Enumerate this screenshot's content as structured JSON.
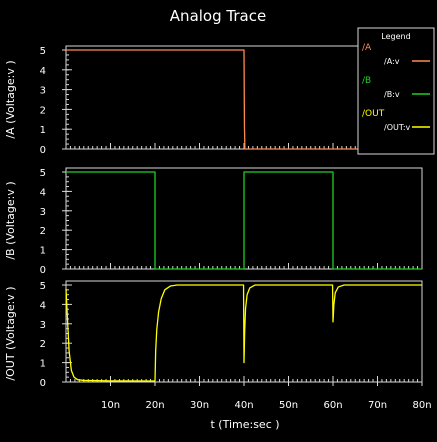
{
  "window": {
    "title": "Analog Trace"
  },
  "colors": {
    "background": "#000000",
    "axis": "#d8d8d8",
    "text": "#ffffff",
    "trace_a": "#ff8a50",
    "trace_b": "#20d020",
    "trace_out": "#ffff00"
  },
  "legend": {
    "title": "Legend",
    "entries": [
      {
        "group": "/A",
        "signal": "/A:v",
        "color_key": "trace_a"
      },
      {
        "group": "/B",
        "signal": "/B:v",
        "color_key": "trace_b"
      },
      {
        "group": "/OUT",
        "signal": "/OUT:v",
        "color_key": "trace_out"
      }
    ]
  },
  "chart_data": {
    "type": "line",
    "title": "Analog Trace",
    "xlabel": "t (Time:sec )",
    "xlim": [
      0,
      80
    ],
    "x_unit": "ns",
    "x_tick_labels": [
      "10n",
      "20n",
      "30n",
      "40n",
      "50n",
      "60n",
      "70n",
      "80n"
    ],
    "x_tick_values": [
      10,
      20,
      30,
      40,
      50,
      60,
      70,
      80
    ],
    "legend_placement": "top-right",
    "grid": false,
    "panels": [
      {
        "ylabel": "/A (Voltage:v )",
        "ylim": [
          0,
          5
        ],
        "y_tick_labels": [
          "0",
          "1",
          "2",
          "3",
          "4",
          "5"
        ],
        "series": [
          {
            "name": "/A:v",
            "color_key": "trace_a",
            "points": [
              [
                0,
                5
              ],
              [
                40,
                5
              ],
              [
                40.1,
                1.2
              ],
              [
                40.2,
                0
              ],
              [
                80,
                0
              ]
            ]
          }
        ]
      },
      {
        "ylabel": "/B (Voltage:v )",
        "ylim": [
          0,
          5
        ],
        "y_tick_labels": [
          "0",
          "1",
          "2",
          "3",
          "4",
          "5"
        ],
        "series": [
          {
            "name": "/B:v",
            "color_key": "trace_b",
            "points": [
              [
                0,
                5
              ],
              [
                20,
                5
              ],
              [
                20,
                0
              ],
              [
                40,
                0
              ],
              [
                40,
                5
              ],
              [
                60,
                5
              ],
              [
                60,
                0
              ],
              [
                80,
                0
              ]
            ]
          }
        ]
      },
      {
        "ylabel": "/OUT (Voltage:v )",
        "ylim": [
          0,
          5
        ],
        "y_tick_labels": [
          "0",
          "1",
          "2",
          "3",
          "4",
          "5"
        ],
        "series": [
          {
            "name": "/OUT:v",
            "color_key": "trace_out",
            "points": [
              [
                0,
                4.8
              ],
              [
                0.3,
                3.4
              ],
              [
                0.7,
                1.6
              ],
              [
                1.2,
                0.6
              ],
              [
                1.8,
                0.25
              ],
              [
                2.6,
                0.12
              ],
              [
                4,
                0.08
              ],
              [
                10,
                0.06
              ],
              [
                20,
                0.05
              ],
              [
                20.15,
                1.6
              ],
              [
                20.4,
                2.7
              ],
              [
                20.8,
                3.6
              ],
              [
                21.4,
                4.3
              ],
              [
                22.2,
                4.75
              ],
              [
                23.5,
                4.95
              ],
              [
                25,
                5.0
              ],
              [
                39.9,
                5.0
              ],
              [
                40.0,
                1.0
              ],
              [
                40.15,
                2.6
              ],
              [
                40.35,
                3.8
              ],
              [
                40.7,
                4.5
              ],
              [
                41.3,
                4.85
              ],
              [
                42.5,
                5.0
              ],
              [
                59.9,
                5.0
              ],
              [
                60.0,
                3.1
              ],
              [
                60.2,
                4.0
              ],
              [
                60.5,
                4.6
              ],
              [
                61.2,
                4.9
              ],
              [
                62.5,
                5.0
              ],
              [
                80,
                5.0
              ]
            ]
          }
        ]
      }
    ]
  }
}
